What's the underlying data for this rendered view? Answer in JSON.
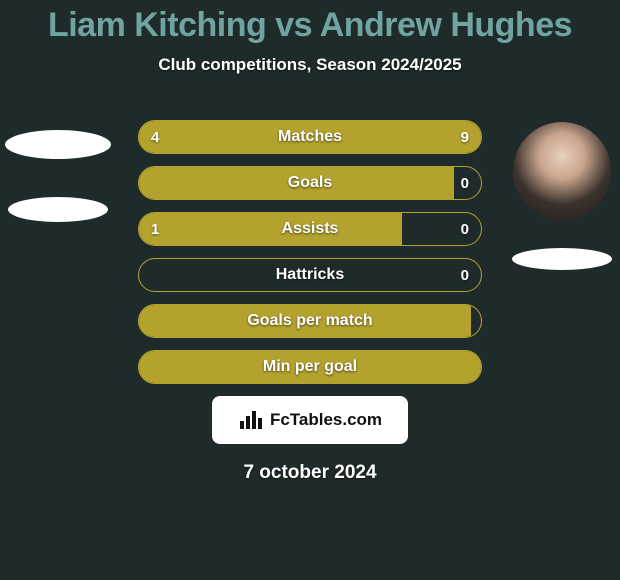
{
  "background_color": "#1f2b2a",
  "text_color_primary": "#6b9c9a",
  "text_color_white": "#ffffff",
  "title": {
    "player1": "Liam Kitching",
    "vs": "vs",
    "player2": "Andrew Hughes",
    "fontsize": 34,
    "color": "#70a4a2"
  },
  "subtitle": {
    "text": "Club competitions, Season 2024/2025",
    "fontsize": 17,
    "color": "#ffffff"
  },
  "date": {
    "text": "7 october 2024",
    "fontsize": 19,
    "color": "#ffffff"
  },
  "players": {
    "left": {
      "name": "Liam Kitching",
      "has_photo": false
    },
    "right": {
      "name": "Andrew Hughes",
      "has_photo": true
    }
  },
  "bars": {
    "border_color": "#b3a22e",
    "fill_color": "#b3a22e",
    "empty_color": "transparent",
    "label_color": "#ffffff",
    "value_color": "#ffffff",
    "rows": [
      {
        "label": "Matches",
        "left_value": "4",
        "right_value": "9",
        "left_pct": 31,
        "right_pct": 69
      },
      {
        "label": "Goals",
        "left_value": "",
        "right_value": "0",
        "left_pct": 92,
        "right_pct": 0
      },
      {
        "label": "Assists",
        "left_value": "1",
        "right_value": "0",
        "left_pct": 77,
        "right_pct": 0
      },
      {
        "label": "Hattricks",
        "left_value": "",
        "right_value": "0",
        "left_pct": 0,
        "right_pct": 0
      },
      {
        "label": "Goals per match",
        "left_value": "",
        "right_value": "",
        "left_pct": 97,
        "right_pct": 0
      },
      {
        "label": "Min per goal",
        "left_value": "",
        "right_value": "",
        "left_pct": 100,
        "right_pct": 0
      }
    ]
  },
  "watermark": {
    "text": "FcTables.com",
    "bg_color": "#ffffff",
    "text_color": "#111111",
    "icon_color": "#111111"
  }
}
